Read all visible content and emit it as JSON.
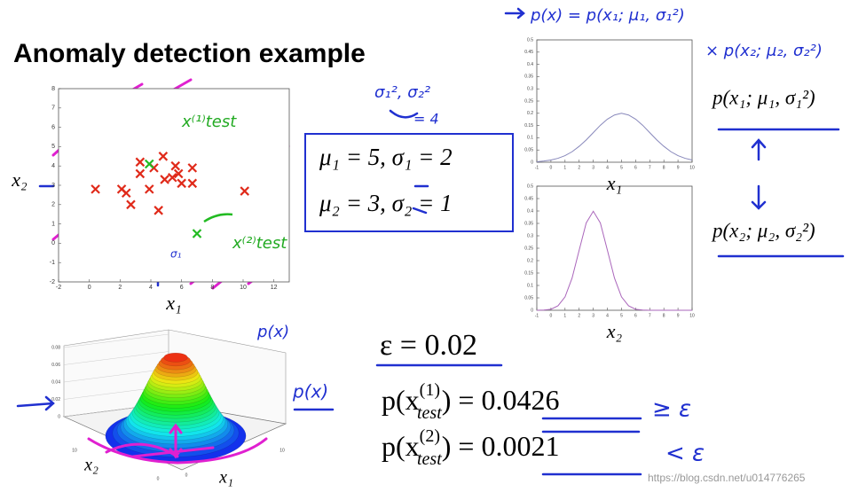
{
  "title": "Anomaly detection example",
  "chart_data": [
    {
      "type": "scatter",
      "xlim": [
        -2,
        13
      ],
      "ylim": [
        -2,
        8
      ],
      "xticks": [
        -2,
        0,
        2,
        4,
        6,
        8,
        10,
        12
      ],
      "yticks": [
        -2,
        -1,
        0,
        1,
        2,
        3,
        4,
        5,
        6,
        7,
        8
      ],
      "x_label": "x₁",
      "y_label": "x₂",
      "series": [
        {
          "color": "#e02a1a",
          "x": [
            3.3,
            4.8,
            4.2,
            5.6,
            5.8,
            6.7,
            5.4,
            6.0,
            6.7,
            0.4,
            2.1,
            2.4,
            3.9,
            2.7,
            4.5,
            10.1,
            3.3,
            4.9
          ],
          "values": [
            4.2,
            4.5,
            3.9,
            4.0,
            3.6,
            3.9,
            3.4,
            3.1,
            3.1,
            2.8,
            2.8,
            2.6,
            2.8,
            2.0,
            1.7,
            2.7,
            3.6,
            3.3
          ]
        },
        {
          "color": "#22bb22",
          "x": [
            3.9,
            7.0
          ],
          "values": [
            4.1,
            0.5
          ]
        }
      ]
    },
    {
      "type": "line",
      "xlim": [
        -1,
        10
      ],
      "ylim": [
        0,
        0.5
      ],
      "xticks": [
        -1,
        0,
        1,
        2,
        3,
        4,
        5,
        6,
        7,
        8,
        9,
        10
      ],
      "yticks": [
        0,
        0.05,
        0.1,
        0.15,
        0.2,
        0.25,
        0.3,
        0.35,
        0.4,
        0.45,
        0.5
      ],
      "x_label": "x₁",
      "color": "#8888bb",
      "x": [
        -1,
        -0.5,
        0,
        0.5,
        1,
        1.5,
        2,
        2.5,
        3,
        3.5,
        4,
        4.5,
        5,
        5.5,
        6,
        6.5,
        7,
        7.5,
        8,
        8.5,
        9,
        9.5,
        10
      ],
      "values": [
        0.002,
        0.005,
        0.009,
        0.016,
        0.027,
        0.043,
        0.065,
        0.091,
        0.121,
        0.151,
        0.176,
        0.193,
        0.2,
        0.193,
        0.176,
        0.151,
        0.121,
        0.091,
        0.065,
        0.043,
        0.027,
        0.016,
        0.009
      ]
    },
    {
      "type": "line",
      "xlim": [
        -1,
        10
      ],
      "ylim": [
        0,
        0.5
      ],
      "xticks": [
        -1,
        0,
        1,
        2,
        3,
        4,
        5,
        6,
        7,
        8,
        9,
        10
      ],
      "yticks": [
        0,
        0.05,
        0.1,
        0.15,
        0.2,
        0.25,
        0.3,
        0.35,
        0.4,
        0.45,
        0.5
      ],
      "x_label": "x₂",
      "color": "#aa66bb",
      "x": [
        -1,
        -0.5,
        0,
        0.5,
        1,
        1.5,
        2,
        2.5,
        3,
        3.5,
        4,
        4.5,
        5,
        5.5,
        6,
        6.5,
        7,
        7.5,
        8,
        8.5,
        9,
        9.5,
        10
      ],
      "values": [
        0,
        0.001,
        0.004,
        0.018,
        0.054,
        0.13,
        0.242,
        0.352,
        0.399,
        0.352,
        0.242,
        0.13,
        0.054,
        0.018,
        0.004,
        0.001,
        0,
        0,
        0,
        0,
        0,
        0,
        0
      ]
    },
    {
      "type": "surface",
      "zlim": [
        0,
        0.08
      ],
      "zticks": [
        0,
        0.02,
        0.04,
        0.06,
        0.08
      ],
      "xticks": [
        0,
        10
      ],
      "yticks": [
        0,
        10
      ],
      "x_label": "x₁",
      "y_label": "x₂"
    }
  ],
  "equations": {
    "box_line1": "μ₁ = 5, σ₁ = 2",
    "box_line2": "μ₂ = 3, σ₂ = 1",
    "px1": "p(x₁; μ₁, σ₁²)",
    "px2": "p(x₂; μ₂, σ₂²)",
    "epsilon": "ε = 0.02",
    "test1": {
      "prefix": "p(x",
      "sup": "(1)",
      "sub": "test",
      "suffix": ") = ",
      "value": "0.0426"
    },
    "test2": {
      "prefix": "p(x",
      "sup": "(2)",
      "sub": "test",
      "suffix": ") = ",
      "value": "0.0021"
    }
  },
  "annotations": {
    "px_product": "p(x) = p(x₁; μ₁, σ₁²)",
    "px_product2": "× p(x₂; μ₂, σ₂²)",
    "sigmas": "σ₁², σ₂²",
    "equals4": "= 4",
    "xtest1": "x⁽¹⁾test",
    "xtest2": "x⁽²⁾test",
    "sigma1": "σ₁",
    "px_a": "p(x)",
    "px_b": "p(x)",
    "ge_eps": "≥ ε",
    "lt_eps": "< ε"
  },
  "watermark": "https://blog.csdn.net/u014776265"
}
